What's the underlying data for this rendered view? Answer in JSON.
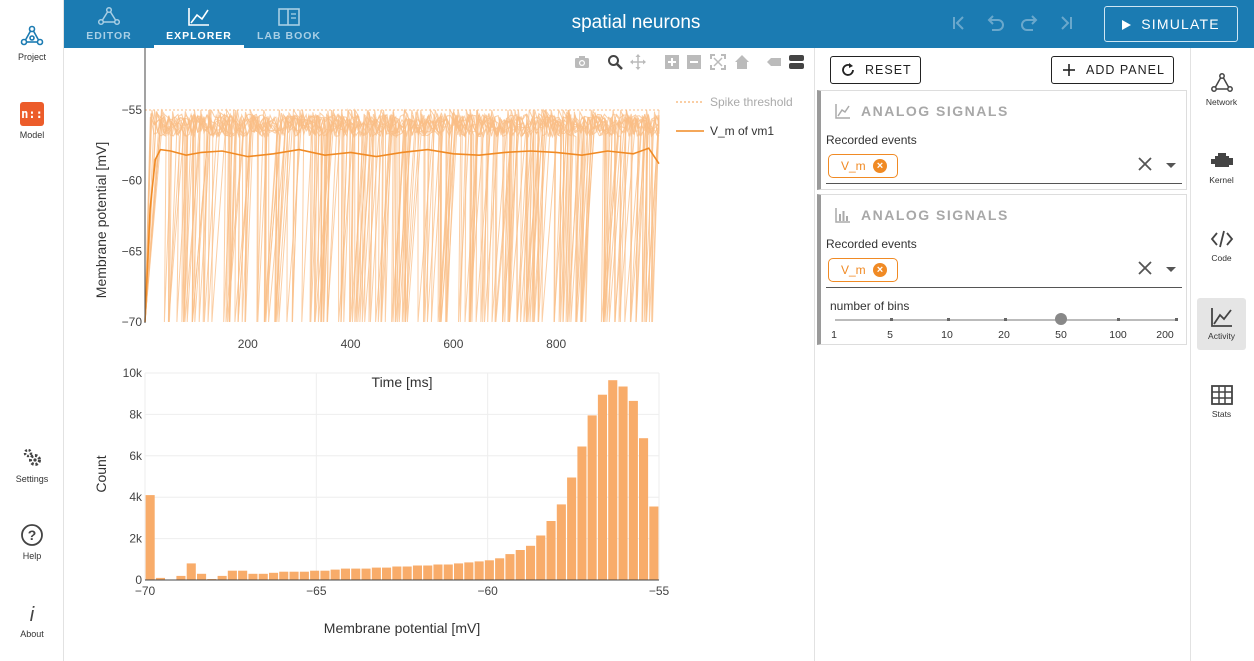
{
  "app": {
    "title": "spatial neurons"
  },
  "left_bar": {
    "project": "Project",
    "model_badge": "n::",
    "model": "Model",
    "settings": "Settings",
    "help": "Help",
    "about": "About"
  },
  "top_tabs": [
    {
      "label": "EDITOR"
    },
    {
      "label": "EXPLORER"
    },
    {
      "label": "LAB BOOK"
    }
  ],
  "simulate_label": "SIMULATE",
  "controls": {
    "reset": "RESET",
    "add_panel": "ADD PANEL"
  },
  "panels": [
    {
      "title": "ANALOG SIGNALS",
      "events_label": "Recorded events",
      "chip": "V_m"
    },
    {
      "title": "ANALOG SIGNALS",
      "events_label": "Recorded events",
      "chip": "V_m",
      "bins_label": "number of bins",
      "bins_marks": [
        "1",
        "5",
        "10",
        "20",
        "50",
        "100",
        "200"
      ],
      "bins_selected": "50"
    }
  ],
  "side_nav": [
    "Network",
    "Kernel",
    "Code",
    "Activity",
    "Stats"
  ],
  "colors": {
    "topbar": "#1b7bb2",
    "orange": "#f08a24",
    "orange_light": "#f9bd85",
    "bar_fill": "#f8ac6a"
  },
  "chart_data": [
    {
      "type": "line",
      "xlabel": "Time [ms]",
      "ylabel": "Membrane potential [mV]",
      "xlim": [
        0,
        1000
      ],
      "ylim": [
        -70,
        -55
      ],
      "xticks": [
        "200",
        "400",
        "600",
        "800"
      ],
      "yticks": [
        "−55",
        "−60",
        "−65",
        "−70"
      ],
      "legend": [
        {
          "name": "Spike threshold",
          "style": "dotted"
        },
        {
          "name": "V_m of vm1",
          "style": "solid"
        }
      ],
      "threshold": -55,
      "mean_trace": {
        "x": [
          0,
          10,
          20,
          30,
          50,
          80,
          110,
          150,
          200,
          250,
          300,
          350,
          400,
          450,
          500,
          550,
          600,
          650,
          700,
          750,
          800,
          850,
          900,
          950,
          980,
          1000
        ],
        "y": [
          -70,
          -62,
          -58.5,
          -57.8,
          -57.9,
          -58.2,
          -58.0,
          -57.9,
          -58.3,
          -58.1,
          -57.8,
          -58.2,
          -58.0,
          -58.3,
          -58.0,
          -57.8,
          -58.1,
          -58.2,
          -58.0,
          -57.9,
          -58.0,
          -58.2,
          -57.9,
          -58.1,
          -57.7,
          -58.8
        ]
      }
    },
    {
      "type": "bar",
      "xlabel": "Membrane potential [mV]",
      "ylabel": "Count",
      "xlim": [
        -70,
        -55
      ],
      "ylim": [
        0,
        10000
      ],
      "xticks": [
        "−70",
        "−65",
        "−60",
        "−55"
      ],
      "yticks": [
        "0",
        "2k",
        "4k",
        "6k",
        "8k",
        "10k"
      ],
      "bin_start": -70,
      "bin_width": 0.3,
      "values": [
        4100,
        100,
        0,
        200,
        800,
        300,
        50,
        200,
        450,
        450,
        300,
        300,
        350,
        400,
        400,
        400,
        450,
        450,
        500,
        550,
        550,
        550,
        600,
        600,
        650,
        650,
        700,
        700,
        750,
        750,
        800,
        850,
        900,
        950,
        1050,
        1250,
        1450,
        1650,
        2150,
        2850,
        3650,
        4950,
        6450,
        7950,
        8950,
        9650,
        9350,
        8650,
        6850,
        3550
      ]
    }
  ]
}
